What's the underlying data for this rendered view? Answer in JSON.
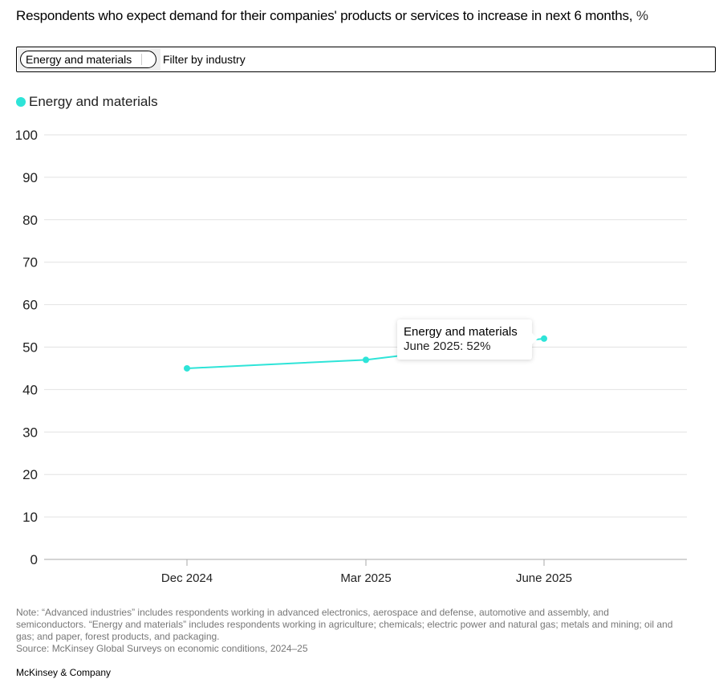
{
  "header": {
    "title": "Respondents who expect demand for their companies' products or services to increase in next 6 months,",
    "unit": " %"
  },
  "filter": {
    "selected_chip": "Energy and materials",
    "placeholder": "Filter by industry"
  },
  "tooltip": {
    "title": "Energy and materials",
    "value": "June 2025: 52%"
  },
  "colors": {
    "series": "#2ee4d8",
    "grid": "#e2e2e2",
    "axis": "#aaaaaa"
  },
  "chart_data": {
    "type": "line",
    "title": "Respondents who expect demand for their companies' products or services to increase in next 6 months, %",
    "xlabel": "",
    "ylabel": "",
    "categories": [
      "Dec 2024",
      "Mar 2025",
      "June 2025"
    ],
    "series": [
      {
        "name": "Energy and materials",
        "color": "#2ee4d8",
        "values": [
          45,
          47,
          52
        ]
      }
    ],
    "ylim": [
      0,
      100
    ],
    "yticks": [
      0,
      10,
      20,
      30,
      40,
      50,
      60,
      70,
      80,
      90,
      100
    ],
    "grid": true,
    "legend": "top-left"
  },
  "footer": {
    "note": "Note: “Advanced industries” includes respondents working in advanced electronics, aerospace and defense, automotive and assembly, and semiconductors. “Energy and materials” includes respondents working in agriculture; chemicals; electric power and natural gas; metals and mining; oil and gas; and paper, forest products, and packaging.",
    "source": "Source: McKinsey Global Surveys on economic conditions, 2024–25",
    "brand": "McKinsey & Company"
  }
}
